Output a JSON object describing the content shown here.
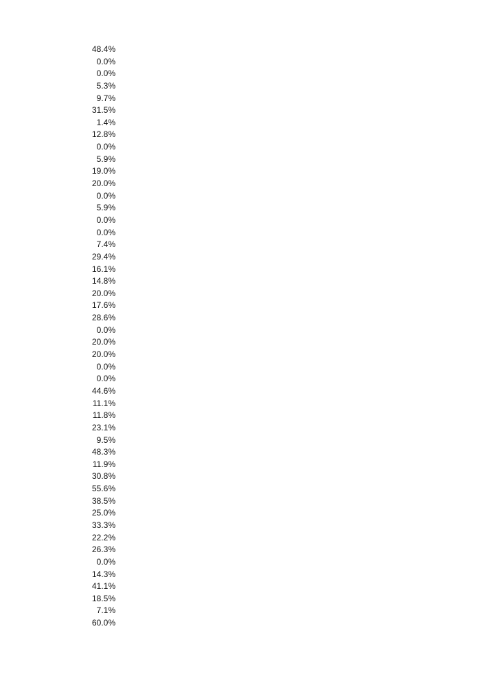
{
  "values": [
    "48.4%",
    "0.0%",
    "0.0%",
    "5.3%",
    "9.7%",
    "31.5%",
    "1.4%",
    "12.8%",
    "0.0%",
    "5.9%",
    "19.0%",
    "20.0%",
    "0.0%",
    "5.9%",
    "0.0%",
    "0.0%",
    "7.4%",
    "29.4%",
    "16.1%",
    "14.8%",
    "20.0%",
    "17.6%",
    "28.6%",
    "0.0%",
    "20.0%",
    "20.0%",
    "0.0%",
    "0.0%",
    "44.6%",
    "11.1%",
    "11.8%",
    "23.1%",
    "9.5%",
    "48.3%",
    "11.9%",
    "30.8%",
    "55.6%",
    "38.5%",
    "25.0%",
    "33.3%",
    "22.2%",
    "26.3%",
    "0.0%",
    "14.3%",
    "41.1%",
    "18.5%",
    "7.1%",
    "60.0%"
  ]
}
